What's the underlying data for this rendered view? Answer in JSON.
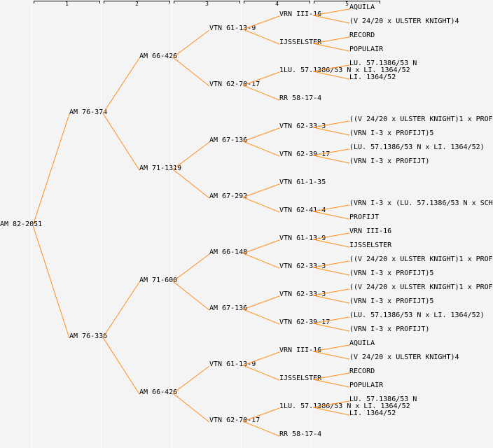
{
  "columns": [
    "1",
    "2",
    "3",
    "4",
    "5"
  ],
  "line_color": "#ff8c1a",
  "tree": {
    "name": "AM 82-2051",
    "children": [
      {
        "name": "AM 76-374",
        "children": [
          {
            "name": "AM 66-426",
            "children": [
              {
                "name": "VTN 61-13-9",
                "children": [
                  {
                    "name": "VRN III-16",
                    "children": [
                      {
                        "name": "AQUILA"
                      },
                      {
                        "name": "(V 24/20 x ULSTER KNIGHT)4"
                      }
                    ]
                  },
                  {
                    "name": "IJSSELSTER",
                    "children": [
                      {
                        "name": "RECORD"
                      },
                      {
                        "name": "POPULAIR"
                      }
                    ]
                  }
                ]
              },
              {
                "name": "VTN 62-70-17",
                "children": [
                  {
                    "name": "1LU. 57.1386/53 N x LI. 1364/52",
                    "children": [
                      {
                        "name": "LU. 57.1386/53 N"
                      },
                      {
                        "name": "LI. 1364/52"
                      }
                    ]
                  },
                  {
                    "name": "RR 58-17-4"
                  }
                ]
              }
            ]
          },
          {
            "name": "AM 71-1319",
            "children": [
              {
                "name": "AM 67-136",
                "children": [
                  {
                    "name": "VTN 62-33-3",
                    "children": [
                      {
                        "name": "((V 24/20 x ULSTER KNIGHT)1 x PROF"
                      },
                      {
                        "name": "(VRN I-3 x PROFIJT)5"
                      }
                    ]
                  },
                  {
                    "name": "VTN 62-39-17",
                    "children": [
                      {
                        "name": "(LU. 57.1386/53 N x LI. 1364/52)"
                      },
                      {
                        "name": "(VRN I-3 x PROFIJT)"
                      }
                    ]
                  }
                ]
              },
              {
                "name": "AM 67-292",
                "children": [
                  {
                    "name": "VTN 61-1-35"
                  },
                  {
                    "name": "VTN 62-41-4",
                    "children": [
                      {
                        "name": "(VRN I-3 x (LU. 57.1386/53 N x SCH"
                      },
                      {
                        "name": "PROFIJT"
                      }
                    ]
                  }
                ]
              }
            ]
          }
        ]
      },
      {
        "name": "AM 76-336",
        "children": [
          {
            "name": "AM 71-600",
            "children": [
              {
                "name": "AM 66-148",
                "children": [
                  {
                    "name": "VTN 61-13-9",
                    "children": [
                      {
                        "name": "VRN III-16"
                      },
                      {
                        "name": "IJSSELSTER"
                      }
                    ]
                  },
                  {
                    "name": "VTN 62-33-3",
                    "children": [
                      {
                        "name": "((V 24/20 x ULSTER KNIGHT)1 x PROF"
                      },
                      {
                        "name": "(VRN I-3 x PROFIJT)5"
                      }
                    ]
                  }
                ]
              },
              {
                "name": "AM 67-136",
                "children": [
                  {
                    "name": "VTN 62-33-3",
                    "children": [
                      {
                        "name": "((V 24/20 x ULSTER KNIGHT)1 x PROF"
                      },
                      {
                        "name": "(VRN I-3 x PROFIJT)5"
                      }
                    ]
                  },
                  {
                    "name": "VTN 62-39-17",
                    "children": [
                      {
                        "name": "(LU. 57.1386/53 N x LI. 1364/52)"
                      },
                      {
                        "name": "(VRN I-3 x PROFIJT)"
                      }
                    ]
                  }
                ]
              }
            ]
          },
          {
            "name": "AM 66-426",
            "children": [
              {
                "name": "VTN 61-13-9",
                "children": [
                  {
                    "name": "VRN III-16",
                    "children": [
                      {
                        "name": "AQUILA"
                      },
                      {
                        "name": "(V 24/20 x ULSTER KNIGHT)4"
                      }
                    ]
                  },
                  {
                    "name": "IJSSELSTER",
                    "children": [
                      {
                        "name": "RECORD"
                      },
                      {
                        "name": "POPULAIR"
                      }
                    ]
                  }
                ]
              },
              {
                "name": "VTN 62-70-17",
                "children": [
                  {
                    "name": "1LU. 57.1386/53 N x LI. 1364/52",
                    "children": [
                      {
                        "name": "LU. 57.1386/53 N"
                      },
                      {
                        "name": "LI. 1364/52"
                      }
                    ]
                  },
                  {
                    "name": "RR 58-17-4"
                  }
                ]
              }
            ]
          }
        ]
      }
    ]
  }
}
